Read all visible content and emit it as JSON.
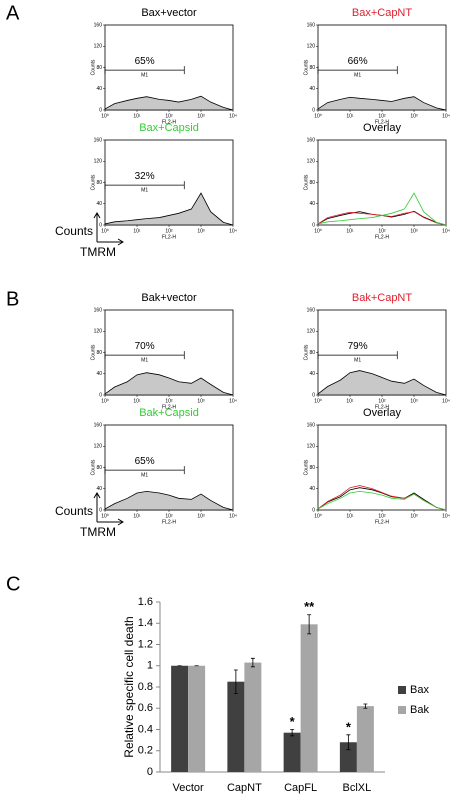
{
  "panel_labels": [
    "A",
    "B",
    "C"
  ],
  "axis_keys": [
    {
      "y": "Counts",
      "x": "TMRM"
    },
    {
      "y": "Counts",
      "x": "TMRM"
    }
  ],
  "chart_data": [
    {
      "type": "area",
      "title": "Bax+vector",
      "title_color": "#000000",
      "xlabel": "FL2-H",
      "ylabel": "Counts",
      "log_x": true,
      "xlim": [
        1,
        10000
      ],
      "xticks": [
        {
          "value": 1,
          "label": "10⁰"
        },
        {
          "value": 10,
          "label": "10¹"
        },
        {
          "value": 100,
          "label": "10²"
        },
        {
          "value": 1000,
          "label": "10³"
        },
        {
          "value": 10000,
          "label": "10⁴"
        }
      ],
      "ylim": [
        0,
        160
      ],
      "yticks": [
        0,
        40,
        80,
        120,
        160
      ],
      "gate": {
        "range": [
          1,
          300
        ],
        "y": 75,
        "label": "M1",
        "percent": "65%"
      },
      "x": [
        1,
        2,
        5,
        10,
        20,
        50,
        100,
        200,
        500,
        1000,
        2000,
        5000,
        10000
      ],
      "series": [
        {
          "color": "#000000",
          "fill": "#c8c8c8",
          "values": [
            2,
            12,
            18,
            22,
            25,
            20,
            18,
            15,
            20,
            26,
            15,
            5,
            0
          ]
        }
      ]
    },
    {
      "type": "area",
      "title": "Bax+CapNT",
      "title_color": "#e0202e",
      "xlabel": "FL2-H",
      "ylabel": "Counts",
      "log_x": true,
      "xlim": [
        1,
        10000
      ],
      "xticks": [
        {
          "value": 1,
          "label": "10⁰"
        },
        {
          "value": 10,
          "label": "10¹"
        },
        {
          "value": 100,
          "label": "10²"
        },
        {
          "value": 1000,
          "label": "10³"
        },
        {
          "value": 10000,
          "label": "10⁴"
        }
      ],
      "ylim": [
        0,
        160
      ],
      "yticks": [
        0,
        40,
        80,
        120,
        160
      ],
      "gate": {
        "range": [
          1,
          300
        ],
        "y": 75,
        "label": "M1",
        "percent": "66%"
      },
      "x": [
        1,
        2,
        5,
        10,
        20,
        50,
        100,
        200,
        500,
        1000,
        2000,
        5000,
        10000
      ],
      "series": [
        {
          "color": "#000000",
          "fill": "#c8c8c8",
          "values": [
            2,
            14,
            20,
            24,
            22,
            20,
            18,
            16,
            22,
            25,
            14,
            4,
            0
          ]
        }
      ]
    },
    {
      "type": "area",
      "title": "Bax+Capsid",
      "title_color": "#33cc33",
      "xlabel": "FL2-H",
      "ylabel": "Counts",
      "log_x": true,
      "xlim": [
        1,
        10000
      ],
      "xticks": [
        {
          "value": 1,
          "label": "10⁰"
        },
        {
          "value": 10,
          "label": "10¹"
        },
        {
          "value": 100,
          "label": "10²"
        },
        {
          "value": 1000,
          "label": "10³"
        },
        {
          "value": 10000,
          "label": "10⁴"
        }
      ],
      "ylim": [
        0,
        160
      ],
      "yticks": [
        0,
        40,
        80,
        120,
        160
      ],
      "gate": {
        "range": [
          1,
          300
        ],
        "y": 75,
        "label": "M1",
        "percent": "32%"
      },
      "x": [
        1,
        2,
        5,
        10,
        20,
        50,
        100,
        200,
        500,
        1000,
        2000,
        5000,
        10000
      ],
      "series": [
        {
          "color": "#000000",
          "fill": "#c8c8c8",
          "values": [
            2,
            6,
            8,
            10,
            12,
            14,
            18,
            22,
            30,
            60,
            25,
            5,
            0
          ]
        }
      ]
    },
    {
      "type": "area",
      "title": "Overlay",
      "title_color": "#000000",
      "xlabel": "FL2-H",
      "ylabel": "Counts",
      "log_x": true,
      "xlim": [
        1,
        10000
      ],
      "xticks": [
        {
          "value": 1,
          "label": "10⁰"
        },
        {
          "value": 10,
          "label": "10¹"
        },
        {
          "value": 100,
          "label": "10²"
        },
        {
          "value": 1000,
          "label": "10³"
        },
        {
          "value": 10000,
          "label": "10⁴"
        }
      ],
      "ylim": [
        0,
        160
      ],
      "yticks": [
        0,
        40,
        80,
        120,
        160
      ],
      "x": [
        1,
        2,
        5,
        10,
        20,
        50,
        100,
        200,
        500,
        1000,
        2000,
        5000,
        10000
      ],
      "series": [
        {
          "color": "#000000",
          "values": [
            2,
            12,
            18,
            22,
            25,
            20,
            18,
            15,
            20,
            26,
            15,
            5,
            0
          ]
        },
        {
          "color": "#e0202e",
          "values": [
            2,
            14,
            20,
            24,
            22,
            20,
            18,
            16,
            22,
            25,
            14,
            4,
            0
          ]
        },
        {
          "color": "#33cc33",
          "values": [
            2,
            6,
            8,
            10,
            12,
            14,
            18,
            22,
            30,
            60,
            25,
            5,
            0
          ]
        }
      ]
    },
    {
      "type": "area",
      "title": "Bak+vector",
      "title_color": "#000000",
      "xlabel": "FL2-H",
      "ylabel": "Counts",
      "log_x": true,
      "xlim": [
        1,
        10000
      ],
      "xticks": [
        {
          "value": 1,
          "label": "10⁰"
        },
        {
          "value": 10,
          "label": "10¹"
        },
        {
          "value": 100,
          "label": "10²"
        },
        {
          "value": 1000,
          "label": "10³"
        },
        {
          "value": 10000,
          "label": "10⁴"
        }
      ],
      "ylim": [
        0,
        160
      ],
      "yticks": [
        0,
        40,
        80,
        120,
        160
      ],
      "gate": {
        "range": [
          1,
          300
        ],
        "y": 75,
        "label": "M1",
        "percent": "70%"
      },
      "x": [
        1,
        2,
        5,
        10,
        20,
        50,
        100,
        200,
        500,
        1000,
        2000,
        5000,
        10000
      ],
      "series": [
        {
          "color": "#000000",
          "fill": "#c8c8c8",
          "values": [
            2,
            15,
            25,
            38,
            42,
            38,
            32,
            25,
            22,
            32,
            20,
            5,
            0
          ]
        }
      ]
    },
    {
      "type": "area",
      "title": "Bak+CapNT",
      "title_color": "#e0202e",
      "xlabel": "FL2-H",
      "ylabel": "Counts",
      "log_x": true,
      "xlim": [
        1,
        10000
      ],
      "xticks": [
        {
          "value": 1,
          "label": "10⁰"
        },
        {
          "value": 10,
          "label": "10¹"
        },
        {
          "value": 100,
          "label": "10²"
        },
        {
          "value": 1000,
          "label": "10³"
        },
        {
          "value": 10000,
          "label": "10⁴"
        }
      ],
      "ylim": [
        0,
        160
      ],
      "yticks": [
        0,
        40,
        80,
        120,
        160
      ],
      "gate": {
        "range": [
          1,
          300
        ],
        "y": 75,
        "label": "M1",
        "percent": "79%"
      },
      "x": [
        1,
        2,
        5,
        10,
        20,
        50,
        100,
        200,
        500,
        1000,
        2000,
        5000,
        10000
      ],
      "series": [
        {
          "color": "#000000",
          "fill": "#c8c8c8",
          "values": [
            2,
            16,
            28,
            42,
            46,
            40,
            33,
            26,
            22,
            30,
            18,
            5,
            0
          ]
        }
      ]
    },
    {
      "type": "area",
      "title": "Bak+Capsid",
      "title_color": "#33cc33",
      "xlabel": "FL2-H",
      "ylabel": "Counts",
      "log_x": true,
      "xlim": [
        1,
        10000
      ],
      "xticks": [
        {
          "value": 1,
          "label": "10⁰"
        },
        {
          "value": 10,
          "label": "10¹"
        },
        {
          "value": 100,
          "label": "10²"
        },
        {
          "value": 1000,
          "label": "10³"
        },
        {
          "value": 10000,
          "label": "10⁴"
        }
      ],
      "ylim": [
        0,
        160
      ],
      "yticks": [
        0,
        40,
        80,
        120,
        160
      ],
      "gate": {
        "range": [
          1,
          300
        ],
        "y": 75,
        "label": "M1",
        "percent": "65%"
      },
      "x": [
        1,
        2,
        5,
        10,
        20,
        50,
        100,
        200,
        500,
        1000,
        2000,
        5000,
        10000
      ],
      "series": [
        {
          "color": "#000000",
          "fill": "#c8c8c8",
          "values": [
            2,
            12,
            22,
            32,
            35,
            32,
            28,
            22,
            20,
            30,
            18,
            5,
            0
          ]
        }
      ]
    },
    {
      "type": "area",
      "title": "Overlay",
      "title_color": "#000000",
      "xlabel": "FL2-H",
      "ylabel": "Counts",
      "log_x": true,
      "xlim": [
        1,
        10000
      ],
      "xticks": [
        {
          "value": 1,
          "label": "10⁰"
        },
        {
          "value": 10,
          "label": "10¹"
        },
        {
          "value": 100,
          "label": "10²"
        },
        {
          "value": 1000,
          "label": "10³"
        },
        {
          "value": 10000,
          "label": "10⁴"
        }
      ],
      "ylim": [
        0,
        160
      ],
      "yticks": [
        0,
        40,
        80,
        120,
        160
      ],
      "x": [
        1,
        2,
        5,
        10,
        20,
        50,
        100,
        200,
        500,
        1000,
        2000,
        5000,
        10000
      ],
      "series": [
        {
          "color": "#000000",
          "values": [
            2,
            15,
            25,
            38,
            42,
            38,
            32,
            25,
            22,
            32,
            20,
            5,
            0
          ]
        },
        {
          "color": "#e0202e",
          "values": [
            2,
            16,
            28,
            42,
            46,
            40,
            33,
            26,
            22,
            30,
            18,
            5,
            0
          ]
        },
        {
          "color": "#33cc33",
          "values": [
            2,
            12,
            22,
            32,
            35,
            32,
            28,
            22,
            20,
            30,
            18,
            5,
            0
          ]
        }
      ]
    },
    {
      "type": "bar",
      "ylabel": "Relative specific cell death",
      "categories": [
        "Vector",
        "CapNT",
        "CapFL",
        "BclXL"
      ],
      "ylim": [
        0,
        1.6
      ],
      "yticks": [
        0,
        0.2,
        0.4,
        0.6,
        0.8,
        1,
        1.2,
        1.4,
        1.6
      ],
      "series": [
        {
          "name": "Bax",
          "color": "#404040",
          "values": [
            1,
            0.85,
            0.37,
            0.28
          ],
          "errors": [
            0,
            0.11,
            0.03,
            0.07
          ],
          "marks": [
            null,
            null,
            "*",
            "*"
          ]
        },
        {
          "name": "Bak",
          "color": "#a6a6a6",
          "values": [
            1,
            1.03,
            1.39,
            0.62
          ],
          "errors": [
            0,
            0.04,
            0.09,
            0.02
          ],
          "marks": [
            null,
            null,
            "**",
            null
          ]
        }
      ]
    }
  ]
}
